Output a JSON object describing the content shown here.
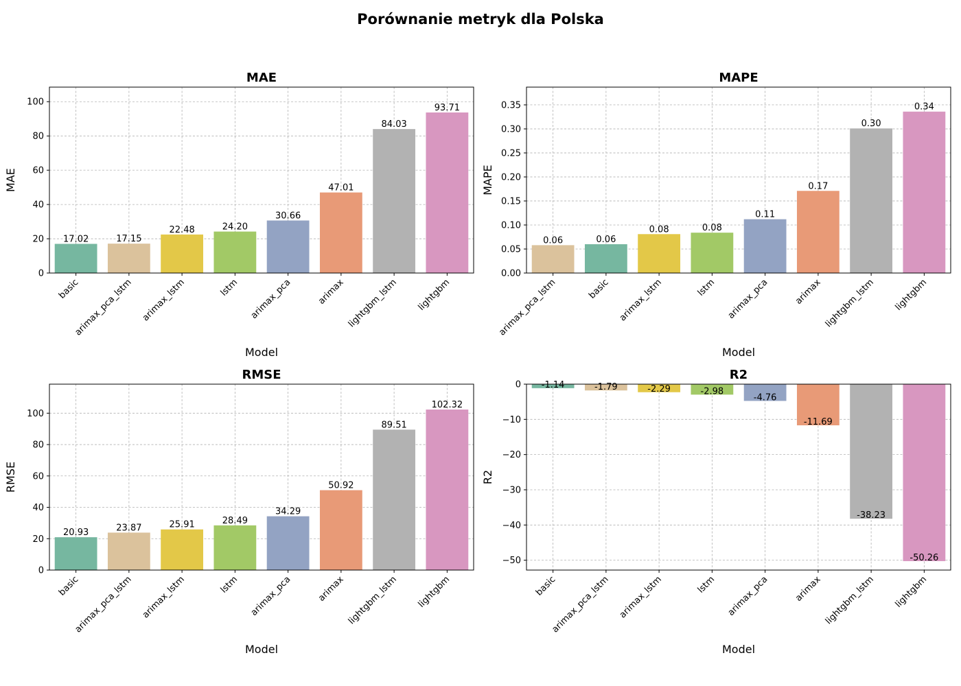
{
  "figure": {
    "title": "Porównanie metryk dla Polska"
  },
  "palette": {
    "basic": "#76b7a0",
    "arimax_pca_lstm": "#dbc29c",
    "arimax_lstm": "#e3c848",
    "lstm": "#a2c966",
    "arimax_pca": "#93a3c3",
    "arimax": "#e89a77",
    "lightgbm_lstm": "#b2b2b2",
    "lightgbm": "#d897c0"
  },
  "chart_data": [
    {
      "type": "bar",
      "title": "MAE",
      "xlabel": "Model",
      "ylabel": "MAE",
      "categories": [
        "basic",
        "arimax_pca_lstm",
        "arimax_lstm",
        "lstm",
        "arimax_pca",
        "arimax",
        "lightgbm_lstm",
        "lightgbm"
      ],
      "values": [
        17.02,
        17.15,
        22.48,
        24.2,
        30.66,
        47.01,
        84.03,
        93.71
      ],
      "labels": [
        "17.02",
        "17.15",
        "22.48",
        "24.20",
        "30.66",
        "47.01",
        "84.03",
        "93.71"
      ],
      "ylim": [
        0,
        108.5
      ],
      "yticks": [
        0,
        20,
        40,
        60,
        80,
        100
      ],
      "ytick_labels": [
        "0",
        "20",
        "40",
        "60",
        "80",
        "100"
      ],
      "grid": true
    },
    {
      "type": "bar",
      "title": "MAPE",
      "xlabel": "Model",
      "ylabel": "MAPE",
      "categories": [
        "arimax_pca_lstm",
        "basic",
        "arimax_lstm",
        "lstm",
        "arimax_pca",
        "arimax",
        "lightgbm_lstm",
        "lightgbm"
      ],
      "values": [
        0.058,
        0.06,
        0.081,
        0.084,
        0.112,
        0.171,
        0.301,
        0.336
      ],
      "labels": [
        "0.06",
        "0.06",
        "0.08",
        "0.08",
        "0.11",
        "0.17",
        "0.30",
        "0.34"
      ],
      "ylim": [
        0,
        0.387
      ],
      "yticks": [
        0,
        0.05,
        0.1,
        0.15,
        0.2,
        0.25,
        0.3,
        0.35
      ],
      "ytick_labels": [
        "0.00",
        "0.05",
        "0.10",
        "0.15",
        "0.20",
        "0.25",
        "0.30",
        "0.35"
      ],
      "grid": true
    },
    {
      "type": "bar",
      "title": "RMSE",
      "xlabel": "Model",
      "ylabel": "RMSE",
      "categories": [
        "basic",
        "arimax_pca_lstm",
        "arimax_lstm",
        "lstm",
        "arimax_pca",
        "arimax",
        "lightgbm_lstm",
        "lightgbm"
      ],
      "values": [
        20.93,
        23.87,
        25.91,
        28.49,
        34.29,
        50.92,
        89.51,
        102.32
      ],
      "labels": [
        "20.93",
        "23.87",
        "25.91",
        "28.49",
        "34.29",
        "50.92",
        "89.51",
        "102.32"
      ],
      "ylim": [
        0,
        118.5
      ],
      "yticks": [
        0,
        20,
        40,
        60,
        80,
        100
      ],
      "ytick_labels": [
        "0",
        "20",
        "40",
        "60",
        "80",
        "100"
      ],
      "grid": true
    },
    {
      "type": "bar",
      "title": "R2",
      "xlabel": "Model",
      "ylabel": "R2",
      "categories": [
        "basic",
        "arimax_pca_lstm",
        "arimax_lstm",
        "lstm",
        "arimax_pca",
        "arimax",
        "lightgbm_lstm",
        "lightgbm"
      ],
      "values": [
        -1.14,
        -1.79,
        -2.29,
        -2.98,
        -4.76,
        -11.69,
        -38.23,
        -50.26
      ],
      "labels": [
        "-1.14",
        "-1.79",
        "-2.29",
        "-2.98",
        "-4.76",
        "-11.69",
        "-38.23",
        "-50.26"
      ],
      "ylim": [
        -52.8,
        0
      ],
      "yticks": [
        0,
        -10,
        -20,
        -30,
        -40,
        -50
      ],
      "ytick_labels": [
        "0",
        "−10",
        "−20",
        "−30",
        "−40",
        "−50"
      ],
      "grid": true
    }
  ]
}
